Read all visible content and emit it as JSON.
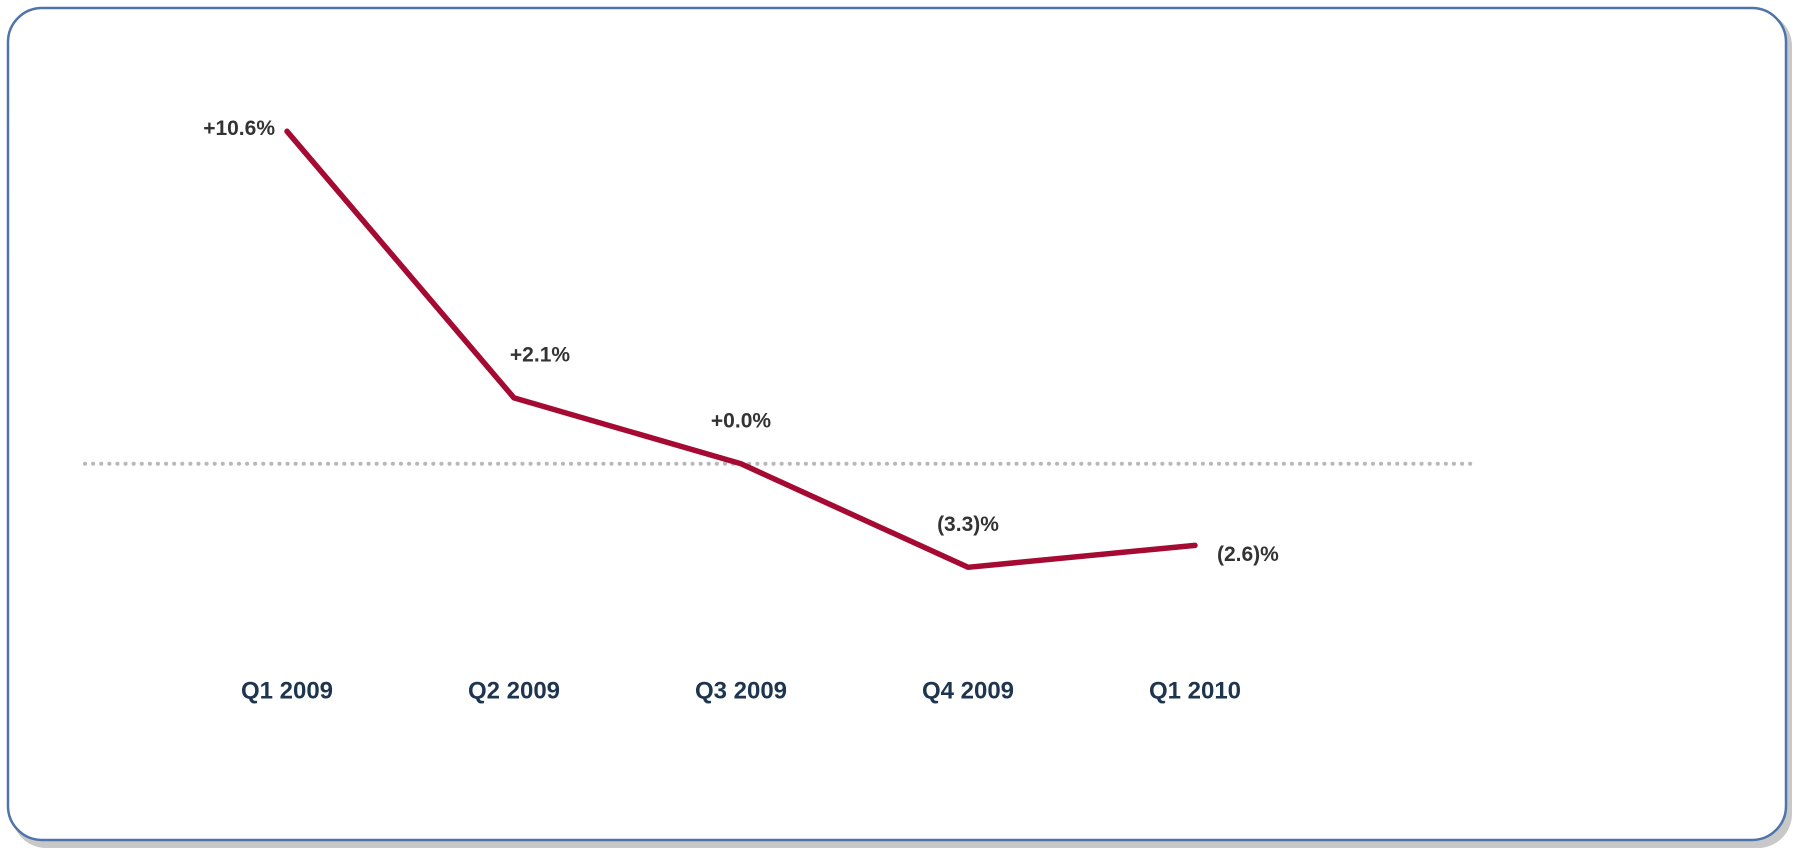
{
  "chart_data": {
    "type": "line",
    "categories": [
      "Q1 2009",
      "Q2 2009",
      "Q3 2009",
      "Q4 2009",
      "Q1 2010"
    ],
    "values": [
      10.6,
      2.1,
      0.0,
      -3.3,
      -2.6
    ],
    "value_labels": [
      "+10.6%",
      "+2.1%",
      "+0.0%",
      "(3.3)%",
      "(2.6)%"
    ],
    "color": "#a50a32",
    "ylim": [
      -6,
      13
    ],
    "reference_line": 0
  }
}
